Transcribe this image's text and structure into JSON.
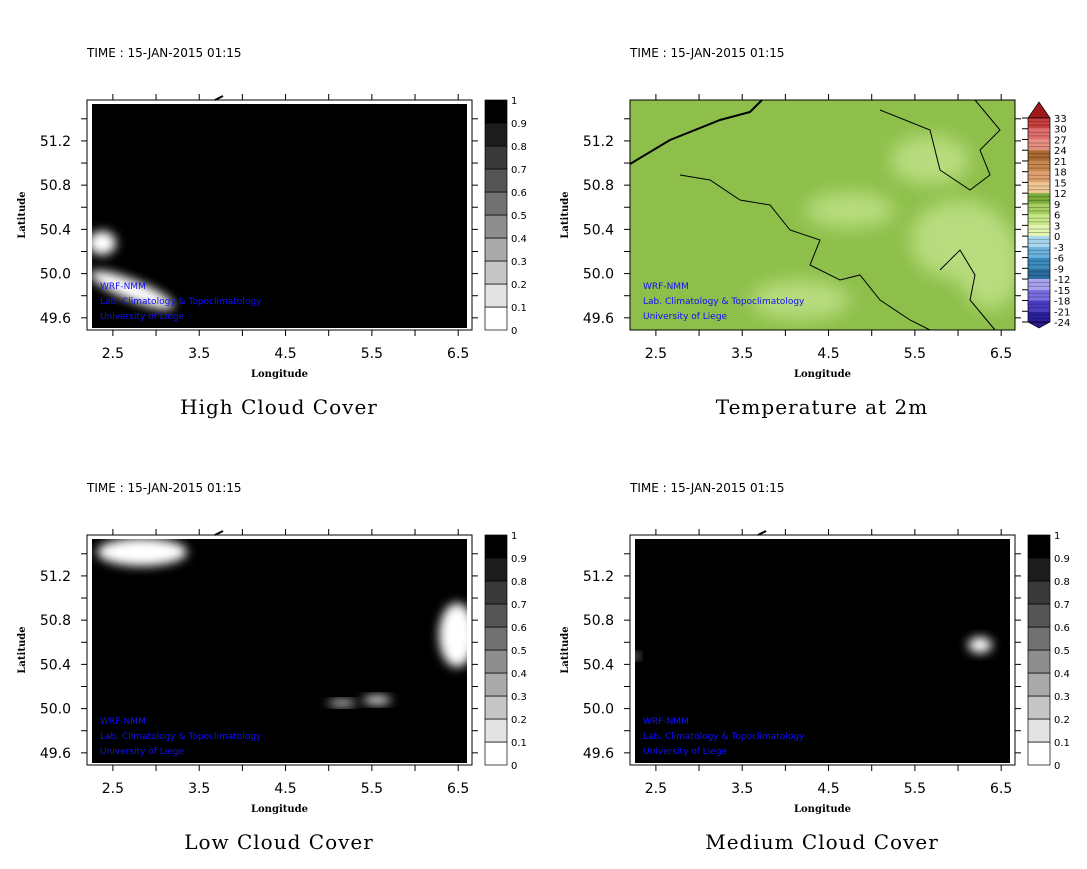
{
  "chart_data": [
    {
      "type": "heatmap",
      "title": "High Cloud Cover",
      "time_label": "TIME : 15-JAN-2015 01:15",
      "xlabel": "Longitude",
      "ylabel": "Latitude",
      "xticks": [
        "2.5",
        "3.5",
        "4.5",
        "5.5",
        "6.5"
      ],
      "yticks": [
        "51.2",
        "50.8",
        "50.4",
        "50.0",
        "49.6"
      ],
      "xlim": [
        2.2,
        6.66
      ],
      "ylim": [
        49.49,
        51.57
      ],
      "colorbar": {
        "kind": "gray",
        "levels": [
          "0",
          "0.1",
          "0.2",
          "0.3",
          "0.4",
          "0.5",
          "0.6",
          "0.7",
          "0.8",
          "0.9",
          "1"
        ]
      },
      "annotations": [
        "WRF-NMM",
        "Lab. Climatology & Topoclimatology",
        "University of Liege"
      ],
      "field": "mostly ~1 (overcast); clear patches near 2.3E 50.35N and 2.5-3.4E 49.9N"
    },
    {
      "type": "heatmap",
      "title": "Temperature at 2m",
      "time_label": "TIME : 15-JAN-2015 01:15",
      "xlabel": "Longitude",
      "ylabel": "Latitude",
      "xticks": [
        "2.5",
        "3.5",
        "4.5",
        "5.5",
        "6.5"
      ],
      "yticks": [
        "51.2",
        "50.8",
        "50.4",
        "50.0",
        "49.6"
      ],
      "xlim": [
        2.2,
        6.66
      ],
      "ylim": [
        49.49,
        51.57
      ],
      "colorbar": {
        "kind": "temperature",
        "levels": [
          "33",
          "30",
          "27",
          "24",
          "21",
          "18",
          "15",
          "12",
          "9",
          "6",
          "3",
          "0",
          "-3",
          "-6",
          "-9",
          "-12",
          "-15",
          "-18",
          "-21",
          "-24"
        ],
        "colors": [
          "#c84040",
          "#e07070",
          "#e89080",
          "#a86a30",
          "#c88850",
          "#e0a070",
          "#f0c896",
          "#7aac3a",
          "#a8d060",
          "#c8e88a",
          "#e3f5b0",
          "#a8d8f0",
          "#6eb3de",
          "#3a8bbf",
          "#2a6e9e",
          "#a9a3f0",
          "#7a6ee0",
          "#4a3cc0",
          "#2a1f9a"
        ],
        "over": "#a01818",
        "under": "#2a1890"
      },
      "annotations": [
        "WRF-NMM",
        "Lab. Climatology & Topoclimatology",
        "University of Liege"
      ],
      "field": "mostly 6-9 C, warmer 3-6 C patches in the southeast"
    },
    {
      "type": "heatmap",
      "title": "Low Cloud Cover",
      "time_label": "TIME : 15-JAN-2015 01:15",
      "xlabel": "Longitude",
      "ylabel": "Latitude",
      "xticks": [
        "2.5",
        "3.5",
        "4.5",
        "5.5",
        "6.5"
      ],
      "yticks": [
        "51.2",
        "50.8",
        "50.4",
        "50.0",
        "49.6"
      ],
      "xlim": [
        2.2,
        6.66
      ],
      "ylim": [
        49.49,
        51.57
      ],
      "colorbar": {
        "kind": "gray",
        "levels": [
          "0",
          "0.1",
          "0.2",
          "0.3",
          "0.4",
          "0.5",
          "0.6",
          "0.7",
          "0.8",
          "0.9",
          "1"
        ]
      },
      "annotations": [
        "WRF-NMM",
        "Lab. Climatology & Topoclimatology",
        "University of Liege"
      ],
      "field": "mostly ~1; clearer areas near coast (2.5-3.3E 51.3N) and east (6.2-6.5E 50.6N)"
    },
    {
      "type": "heatmap",
      "title": "Medium Cloud Cover",
      "time_label": "TIME : 15-JAN-2015 01:15",
      "xlabel": "Longitude",
      "ylabel": "Latitude",
      "xticks": [
        "2.5",
        "3.5",
        "4.5",
        "5.5",
        "6.5"
      ],
      "yticks": [
        "51.2",
        "50.8",
        "50.4",
        "50.0",
        "49.6"
      ],
      "xlim": [
        2.2,
        6.66
      ],
      "ylim": [
        49.49,
        51.57
      ],
      "colorbar": {
        "kind": "gray",
        "levels": [
          "0",
          "0.1",
          "0.2",
          "0.3",
          "0.4",
          "0.5",
          "0.6",
          "0.7",
          "0.8",
          "0.9",
          "1"
        ]
      },
      "annotations": [
        "WRF-NMM",
        "Lab. Climatology & Topoclimatology",
        "University of Liege"
      ],
      "field": "mostly ~1; small clear patch near 6.2E 50.6N"
    }
  ]
}
